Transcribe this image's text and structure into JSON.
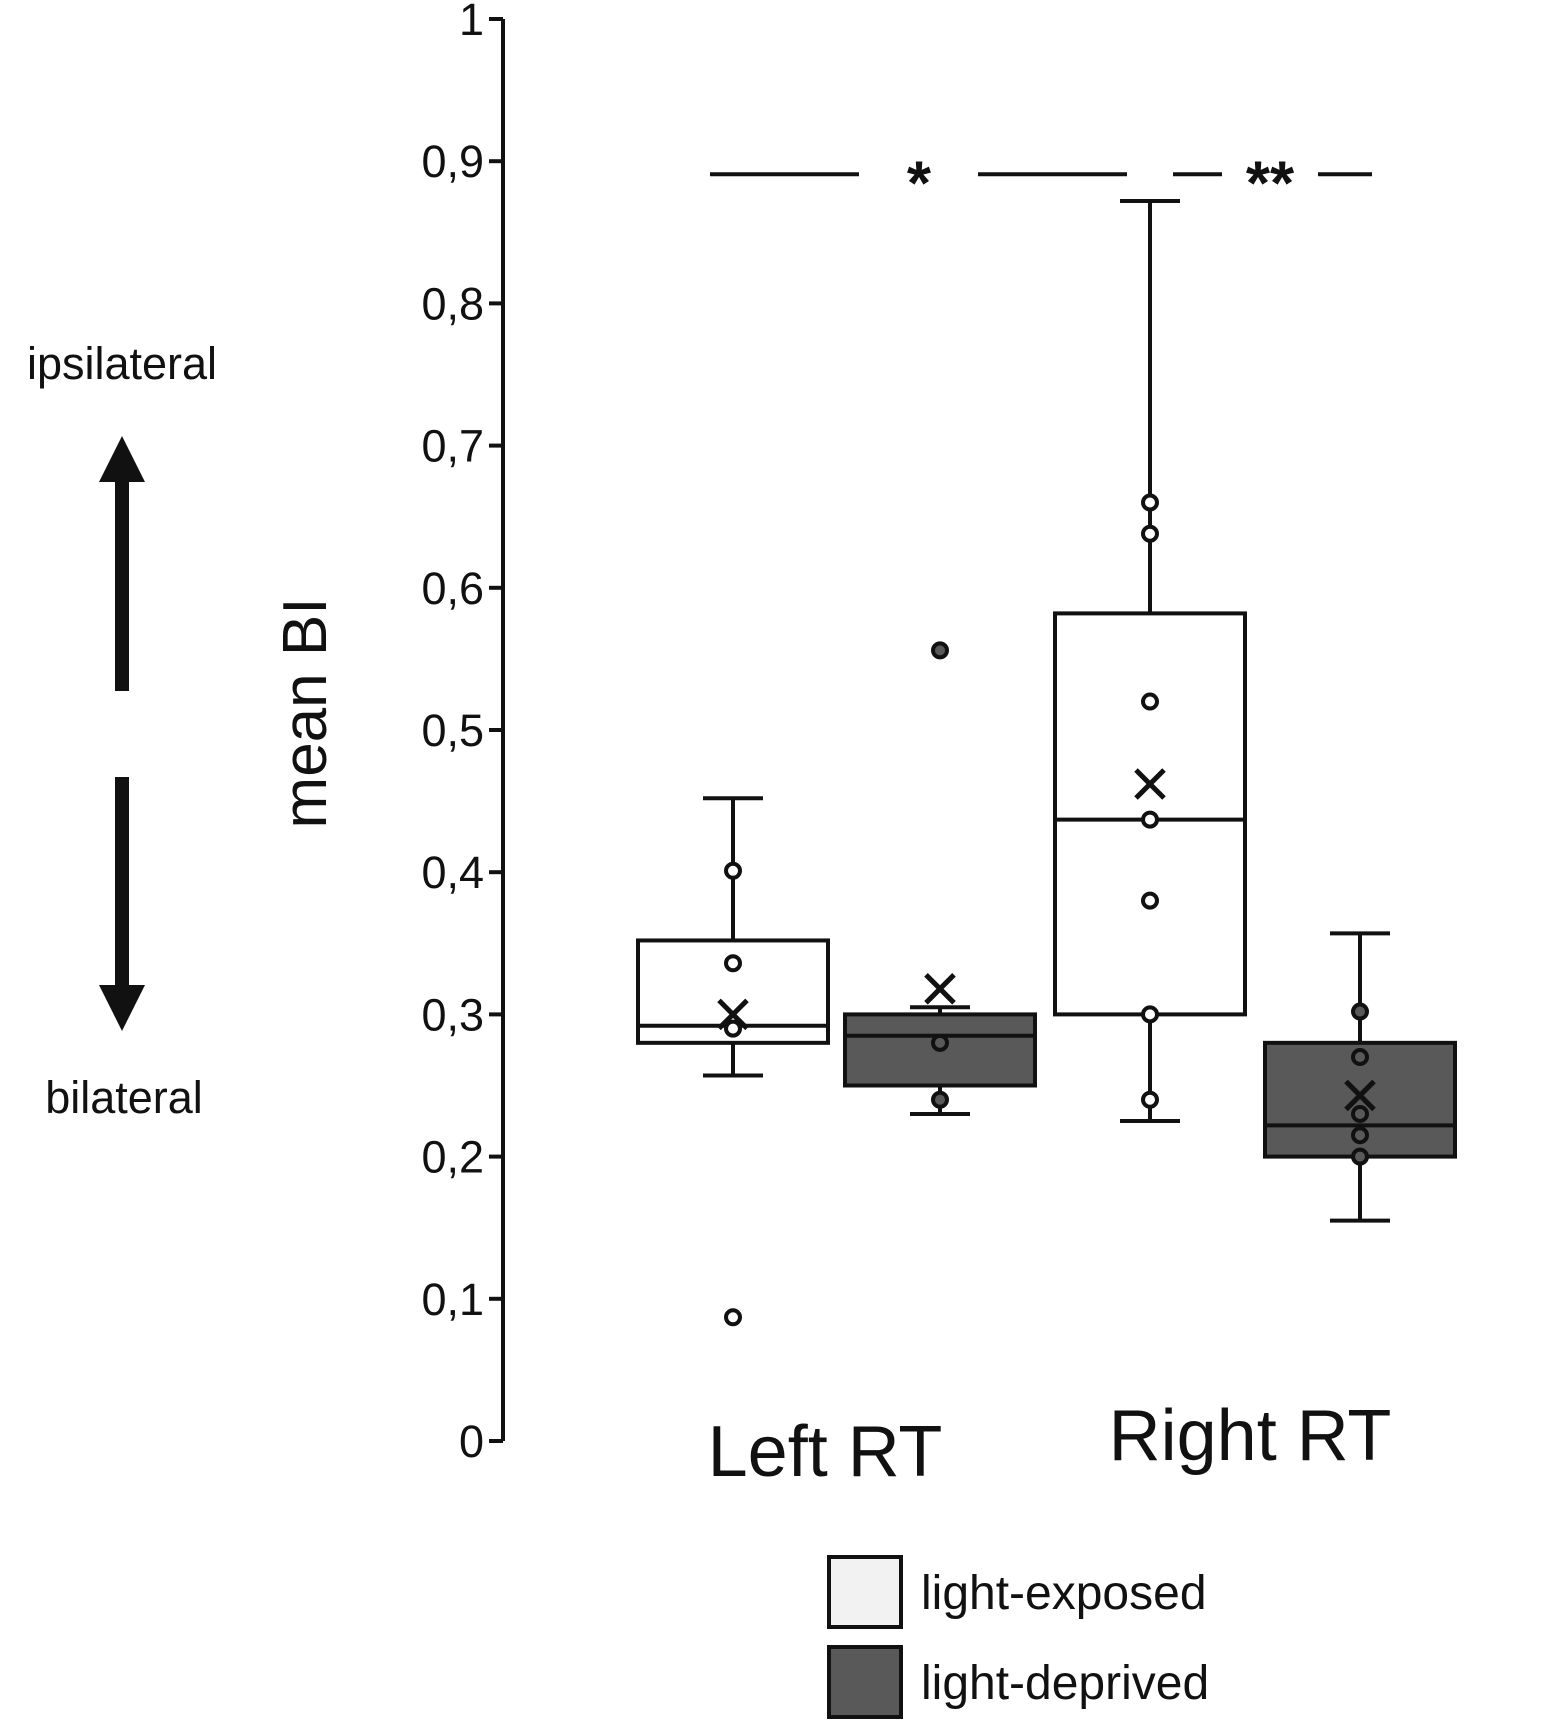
{
  "chart_data": {
    "type": "box",
    "title": "",
    "ylabel": "mean BI",
    "ylim": [
      0,
      1
    ],
    "yticks": [
      0,
      0.1,
      0.2,
      0.3,
      0.4,
      0.5,
      0.6,
      0.7,
      0.8,
      0.9,
      1
    ],
    "ytick_labels": [
      "0",
      "0,1",
      "0,2",
      "0,3",
      "0,4",
      "0,5",
      "0,6",
      "0,7",
      "0,8",
      "0,9",
      "1"
    ],
    "categories": [
      "Left RT",
      "Right RT"
    ],
    "direction_labels": {
      "top": "ipsilateral",
      "bottom": "bilateral"
    },
    "legend": [
      {
        "label": "light-exposed",
        "color": "#f2f2f2"
      },
      {
        "label": "light-deprived",
        "color": "#595959"
      }
    ],
    "colors": {
      "light_exposed_fill": "#ffffff",
      "light_exposed_legend": "#f2f2f2",
      "light_deprived_fill": "#595959",
      "stroke": "#111111"
    },
    "series": [
      {
        "name": "light-exposed",
        "boxes": [
          {
            "category": "Left RT",
            "whisker_low": 0.257,
            "q1": 0.28,
            "median": 0.292,
            "q3": 0.352,
            "whisker_high": 0.452,
            "mean": 0.3,
            "points": [
              0.401,
              0.336,
              0.29,
              0.087
            ]
          },
          {
            "category": "Right RT",
            "whisker_low": 0.225,
            "q1": 0.3,
            "median": 0.437,
            "q3": 0.582,
            "whisker_high": 0.872,
            "mean": 0.462,
            "points": [
              0.66,
              0.638,
              0.52,
              0.437,
              0.38,
              0.3,
              0.24
            ]
          }
        ]
      },
      {
        "name": "light-deprived",
        "boxes": [
          {
            "category": "Left RT",
            "whisker_low": 0.23,
            "q1": 0.25,
            "median": 0.285,
            "q3": 0.3,
            "whisker_high": 0.305,
            "mean": 0.318,
            "points": [
              0.556,
              0.28,
              0.24
            ]
          },
          {
            "category": "Right RT",
            "whisker_low": 0.155,
            "q1": 0.2,
            "median": 0.222,
            "q3": 0.28,
            "whisker_high": 0.357,
            "mean": 0.243,
            "points": [
              0.302,
              0.27,
              0.23,
              0.215,
              0.2
            ]
          }
        ]
      }
    ],
    "annotations": [
      {
        "text": "*",
        "y": 0.895,
        "between": [
          "Left RT",
          "Right RT"
        ],
        "series": "light-exposed"
      },
      {
        "text": "**",
        "y": 0.895,
        "between": [
          "light-exposed",
          "light-deprived"
        ],
        "category": "Right RT"
      }
    ]
  }
}
